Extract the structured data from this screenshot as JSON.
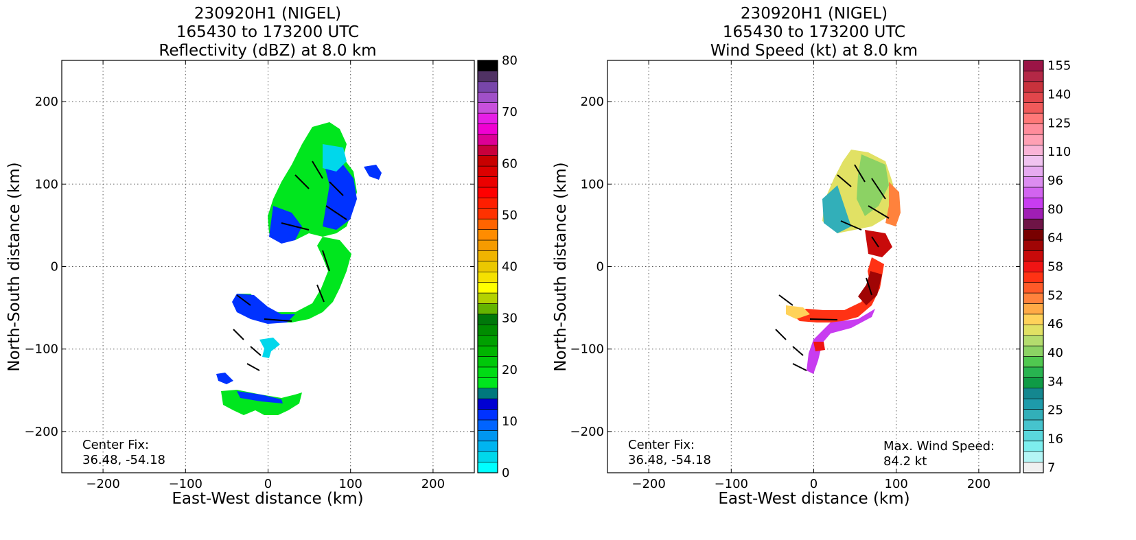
{
  "chart_data": [
    {
      "type": "heatmap",
      "title_lines": [
        "230920H1 (NIGEL)",
        "165430 to 173200 UTC",
        "Reflectivity (dBZ) at 8.0 km"
      ],
      "xlabel": "East-West distance (km)",
      "ylabel": "North-South distance (km)",
      "xlim": [
        -250,
        250
      ],
      "ylim": [
        -250,
        250
      ],
      "xticks": [
        -200,
        -100,
        0,
        100,
        200
      ],
      "yticks": [
        -200,
        -100,
        0,
        100,
        200
      ],
      "grid": true,
      "colorbar": {
        "min": 0,
        "max": 80,
        "tick_labels": [
          "0",
          "10",
          "20",
          "30",
          "40",
          "50",
          "60",
          "70",
          "80"
        ],
        "tick_values": [
          0,
          10,
          20,
          30,
          40,
          50,
          60,
          70,
          80
        ],
        "colors": [
          "#00ffff",
          "#00d7eb",
          "#00b4f0",
          "#0096f0",
          "#0064ff",
          "#0032ff",
          "#0000d2",
          "#00787d",
          "#00e61e",
          "#00dc14",
          "#00c80a",
          "#00b400",
          "#00a000",
          "#008c00",
          "#00780a",
          "#64b400",
          "#b4d200",
          "#ffff00",
          "#f5e100",
          "#ebc800",
          "#f0b400",
          "#f59b00",
          "#ff8c00",
          "#ff6400",
          "#ff3200",
          "#ff1e00",
          "#ff0000",
          "#eb0000",
          "#dc0000",
          "#c80000",
          "#c8003c",
          "#dc0096",
          "#f000d2",
          "#e61ee6",
          "#c850dc",
          "#a050c8",
          "#7846aa",
          "#503264",
          "#000000"
        ]
      },
      "annotations": {
        "center_fix_label": "Center Fix:",
        "center_fix_value": "36.48, -54.18"
      }
    },
    {
      "type": "heatmap",
      "title_lines": [
        "230920H1 (NIGEL)",
        "165430 to 173200 UTC",
        "Wind Speed (kt) at 8.0 km"
      ],
      "xlabel": "East-West distance (km)",
      "ylabel": "North-South distance (km)",
      "xlim": [
        -250,
        250
      ],
      "ylim": [
        -250,
        250
      ],
      "xticks": [
        -200,
        -100,
        0,
        100,
        200
      ],
      "yticks": [
        -200,
        -100,
        0,
        100,
        200
      ],
      "grid": true,
      "colorbar": {
        "tick_labels": [
          "7",
          "16",
          "25",
          "34",
          "40",
          "46",
          "52",
          "58",
          "64",
          "80",
          "96",
          "110",
          "125",
          "140",
          "155"
        ],
        "colors": [
          "#f0f0f0",
          "#b4f5f5",
          "#7deeee",
          "#5ad7dc",
          "#46c3cd",
          "#32afb9",
          "#1e9baa",
          "#14878f",
          "#0f9b46",
          "#28b450",
          "#50c850",
          "#8cd264",
          "#b4dc6e",
          "#e1e164",
          "#ffd25a",
          "#ffaa46",
          "#ff823c",
          "#ff5a28",
          "#ff3214",
          "#f01414",
          "#c80a0a",
          "#a00505",
          "#780000",
          "#6e1446",
          "#a01eb4",
          "#c83cf0",
          "#d264f0",
          "#dc8cf0",
          "#e6aaf0",
          "#f0c3f0",
          "#fab4d7",
          "#ffa0b4",
          "#ff8c9b",
          "#ff7878",
          "#f05a5a",
          "#e1464b",
          "#c8323c",
          "#b42846",
          "#9b1446"
        ]
      },
      "annotations": {
        "center_fix_label": "Center Fix:",
        "center_fix_value": "36.48, -54.18",
        "max_wind_label": "Max. Wind Speed:",
        "max_wind_value": "84.2 kt"
      }
    }
  ]
}
